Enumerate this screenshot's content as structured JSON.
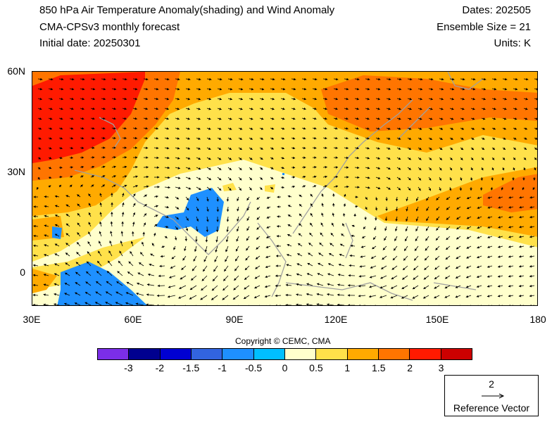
{
  "header": {
    "title_line1": "850 hPa Air Temperature Anomaly(shading) and Wind Anomaly",
    "title_line2": "CMA-CPSv3 monthly forecast",
    "title_line3": "Initial date: 20250301",
    "dates": "Dates: 202505",
    "ensemble": "Ensemble Size = 21",
    "units": "Units: K"
  },
  "map": {
    "x_ticks": [
      "30E",
      "60E",
      "90E",
      "120E",
      "150E",
      "180"
    ],
    "y_ticks": [
      "60N",
      "30N",
      "0"
    ],
    "lon_range": [
      30,
      180
    ],
    "lat_range": [
      -10,
      60
    ],
    "features": [
      "temperature anomaly shading",
      "wind anomaly vectors",
      "coastlines"
    ]
  },
  "copyright": "Copyright © CEMC, CMA",
  "colorbar": {
    "colors": [
      "#7b2ee8",
      "#00008f",
      "#0000d2",
      "#3264e0",
      "#1e90ff",
      "#00bfff",
      "#ffffcc",
      "#ffe14a",
      "#ffaa00",
      "#ff7500",
      "#ff1a00",
      "#cc0000"
    ],
    "labels": [
      "-3",
      "-2",
      "-1.5",
      "-1",
      "-0.5",
      "0",
      "0.5",
      "1",
      "1.5",
      "2",
      "3"
    ]
  },
  "reference_vector": {
    "magnitude": "2",
    "label": "Reference Vector"
  }
}
